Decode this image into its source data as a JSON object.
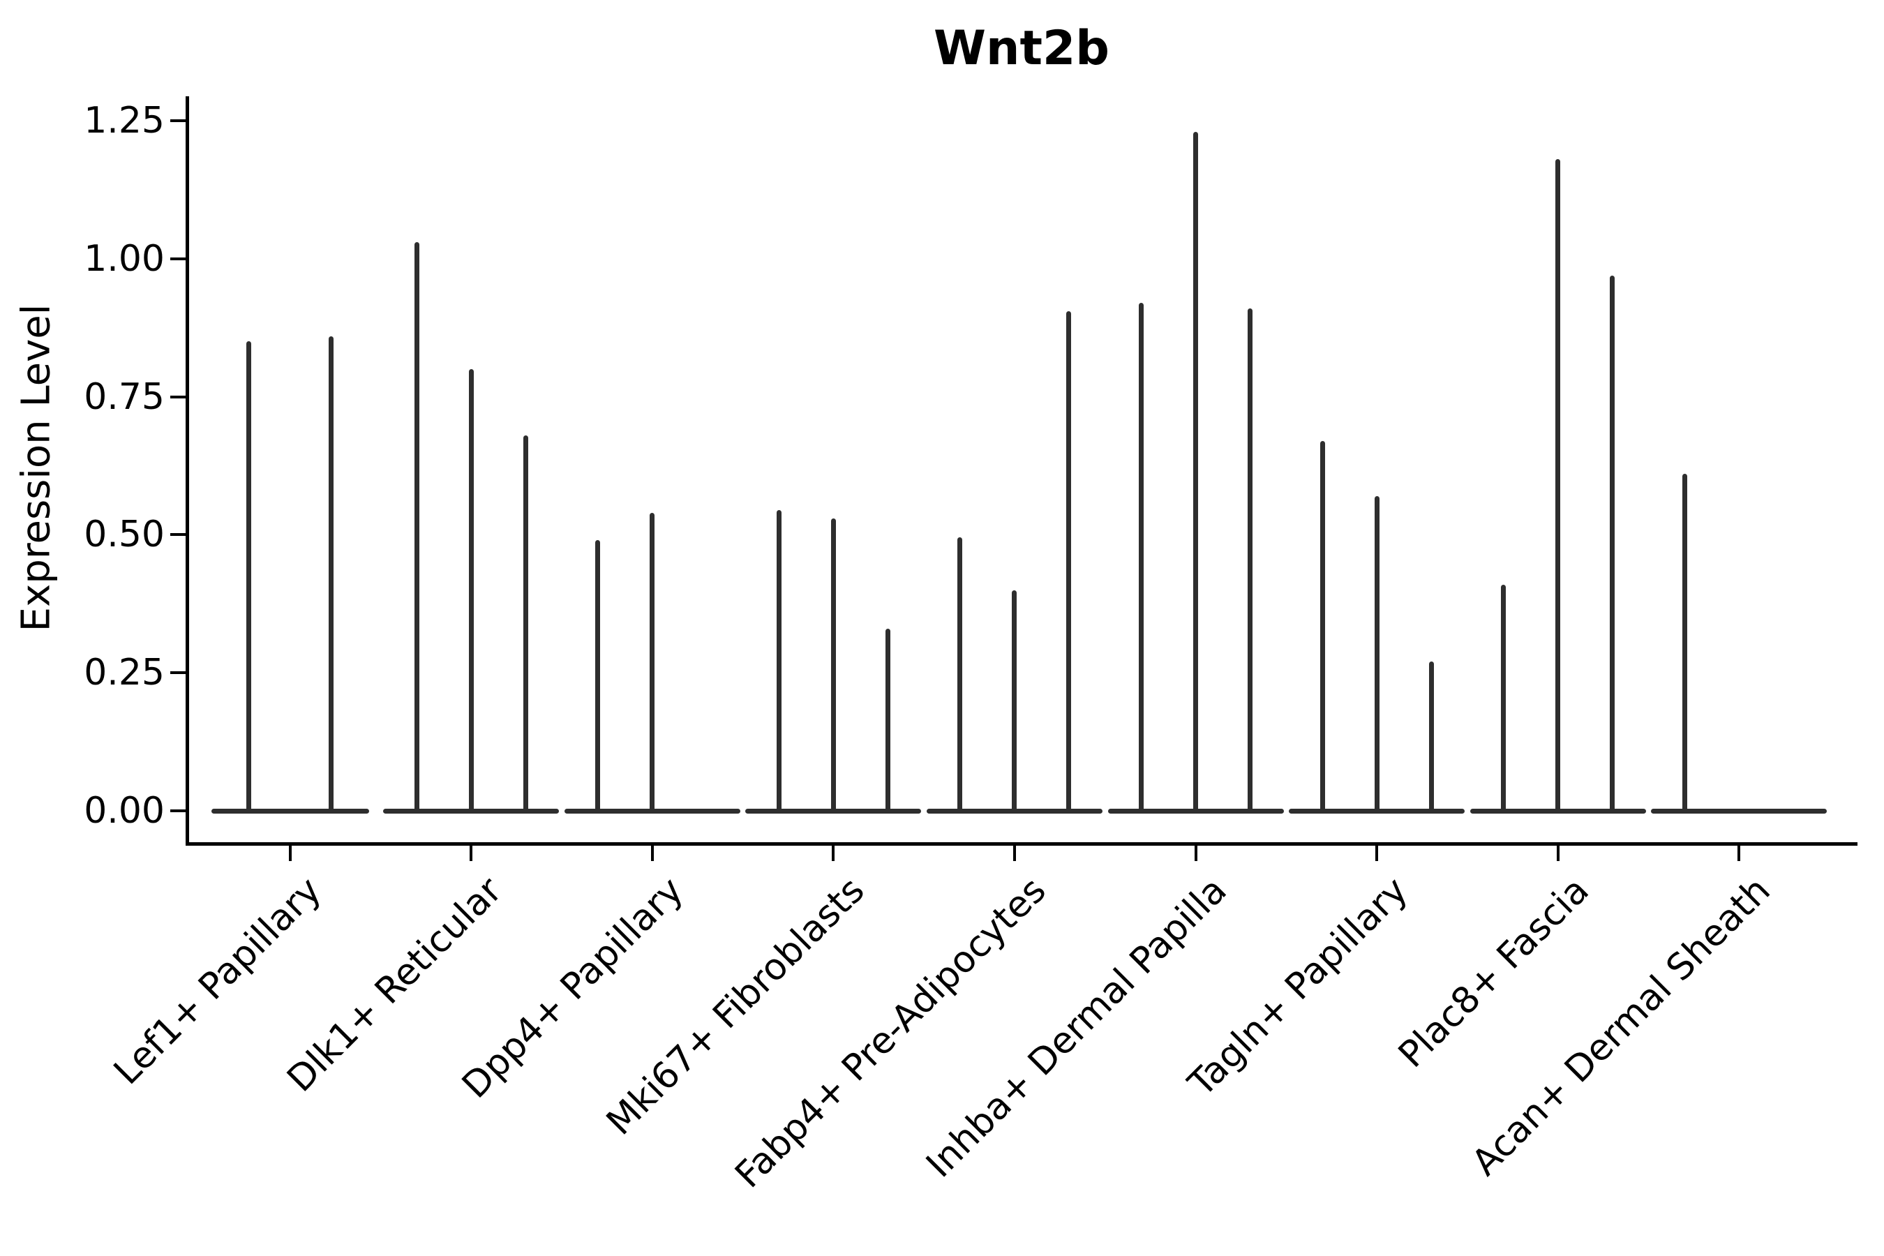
{
  "chart_data": {
    "type": "violin",
    "title": "Wnt2b",
    "ylabel": "Expression Level",
    "xlabel": "",
    "ylim": [
      0,
      1.25
    ],
    "yticks": [
      0,
      0.25,
      0.5,
      0.75,
      1.0,
      1.25
    ],
    "ytick_labels": [
      "0.00",
      "0.25",
      "0.50",
      "0.75",
      "1.00",
      "1.25"
    ],
    "grid": false,
    "legend": null,
    "categories": [
      "Lef1+ Papillary",
      "Dlk1+ Reticular",
      "Dpp4+ Papillary",
      "Mki67+ Fibroblasts",
      "Fabp4+ Pre-Adipocytes",
      "Inhba+ Dermal Papilla",
      "Tagln+ Papillary",
      "Plac8+ Fascia",
      "Acan+ Dermal Sheath"
    ],
    "groups": [
      {
        "category": "Lef1+ Papillary",
        "spike_values": [
          0.85,
          0.86
        ]
      },
      {
        "category": "Dlk1+ Reticular",
        "spike_values": [
          1.03,
          0.8,
          0.68
        ]
      },
      {
        "category": "Dpp4+ Papillary",
        "spike_values": [
          0.49,
          0.54,
          null
        ]
      },
      {
        "category": "Mki67+ Fibroblasts",
        "spike_values": [
          0.545,
          0.53,
          0.33
        ]
      },
      {
        "category": "Fabp4+ Pre-Adipocytes",
        "spike_values": [
          0.495,
          0.4,
          0.905
        ]
      },
      {
        "category": "Inhba+ Dermal Papilla",
        "spike_values": [
          0.92,
          1.23,
          0.91
        ]
      },
      {
        "category": "Tagln+ Papillary",
        "spike_values": [
          0.67,
          0.57,
          0.27
        ]
      },
      {
        "category": "Plac8+ Fascia",
        "spike_values": [
          0.41,
          1.18,
          0.97
        ]
      },
      {
        "category": "Acan+ Dermal Sheath",
        "spike_values": [
          0.61,
          null,
          null
        ]
      }
    ],
    "colors": {
      "spike": "#2e2e2e",
      "axis": "#000000",
      "background": "#ffffff"
    }
  }
}
